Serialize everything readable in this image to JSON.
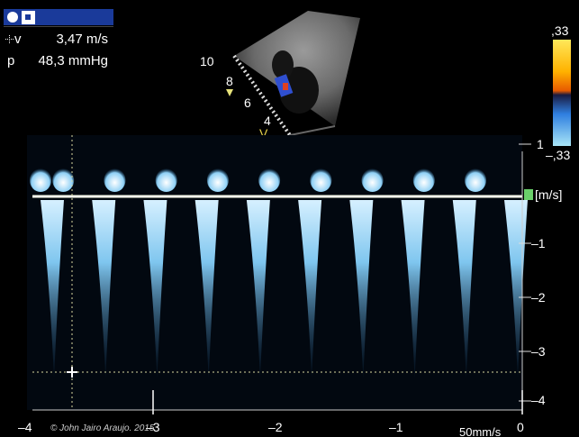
{
  "measurements": {
    "velocity": {
      "label": "v",
      "value": "3,47 m/s"
    },
    "pressure": {
      "label": "p",
      "value": "48,3 mmHg"
    }
  },
  "depth_labels": [
    "10",
    "8",
    "6",
    "4"
  ],
  "probe_marker": "V",
  "color_scale": {
    "top": ",33",
    "bottom": "–,33"
  },
  "spectral": {
    "unit_label": "[m/s]",
    "velocity_ticks": [
      "1",
      "–1",
      "–2",
      "–3",
      "–4"
    ],
    "time_ticks": [
      "–4",
      "–3",
      "–2",
      "–1",
      "0"
    ],
    "sweep_speed": "50mm/s",
    "beat_count": 10
  },
  "credit": "© John Jairo Araujo. 2015",
  "colors": {
    "status_bar": "#1a3a9a",
    "baseline": "#ffffee",
    "doppler": "#7fc6ef"
  }
}
